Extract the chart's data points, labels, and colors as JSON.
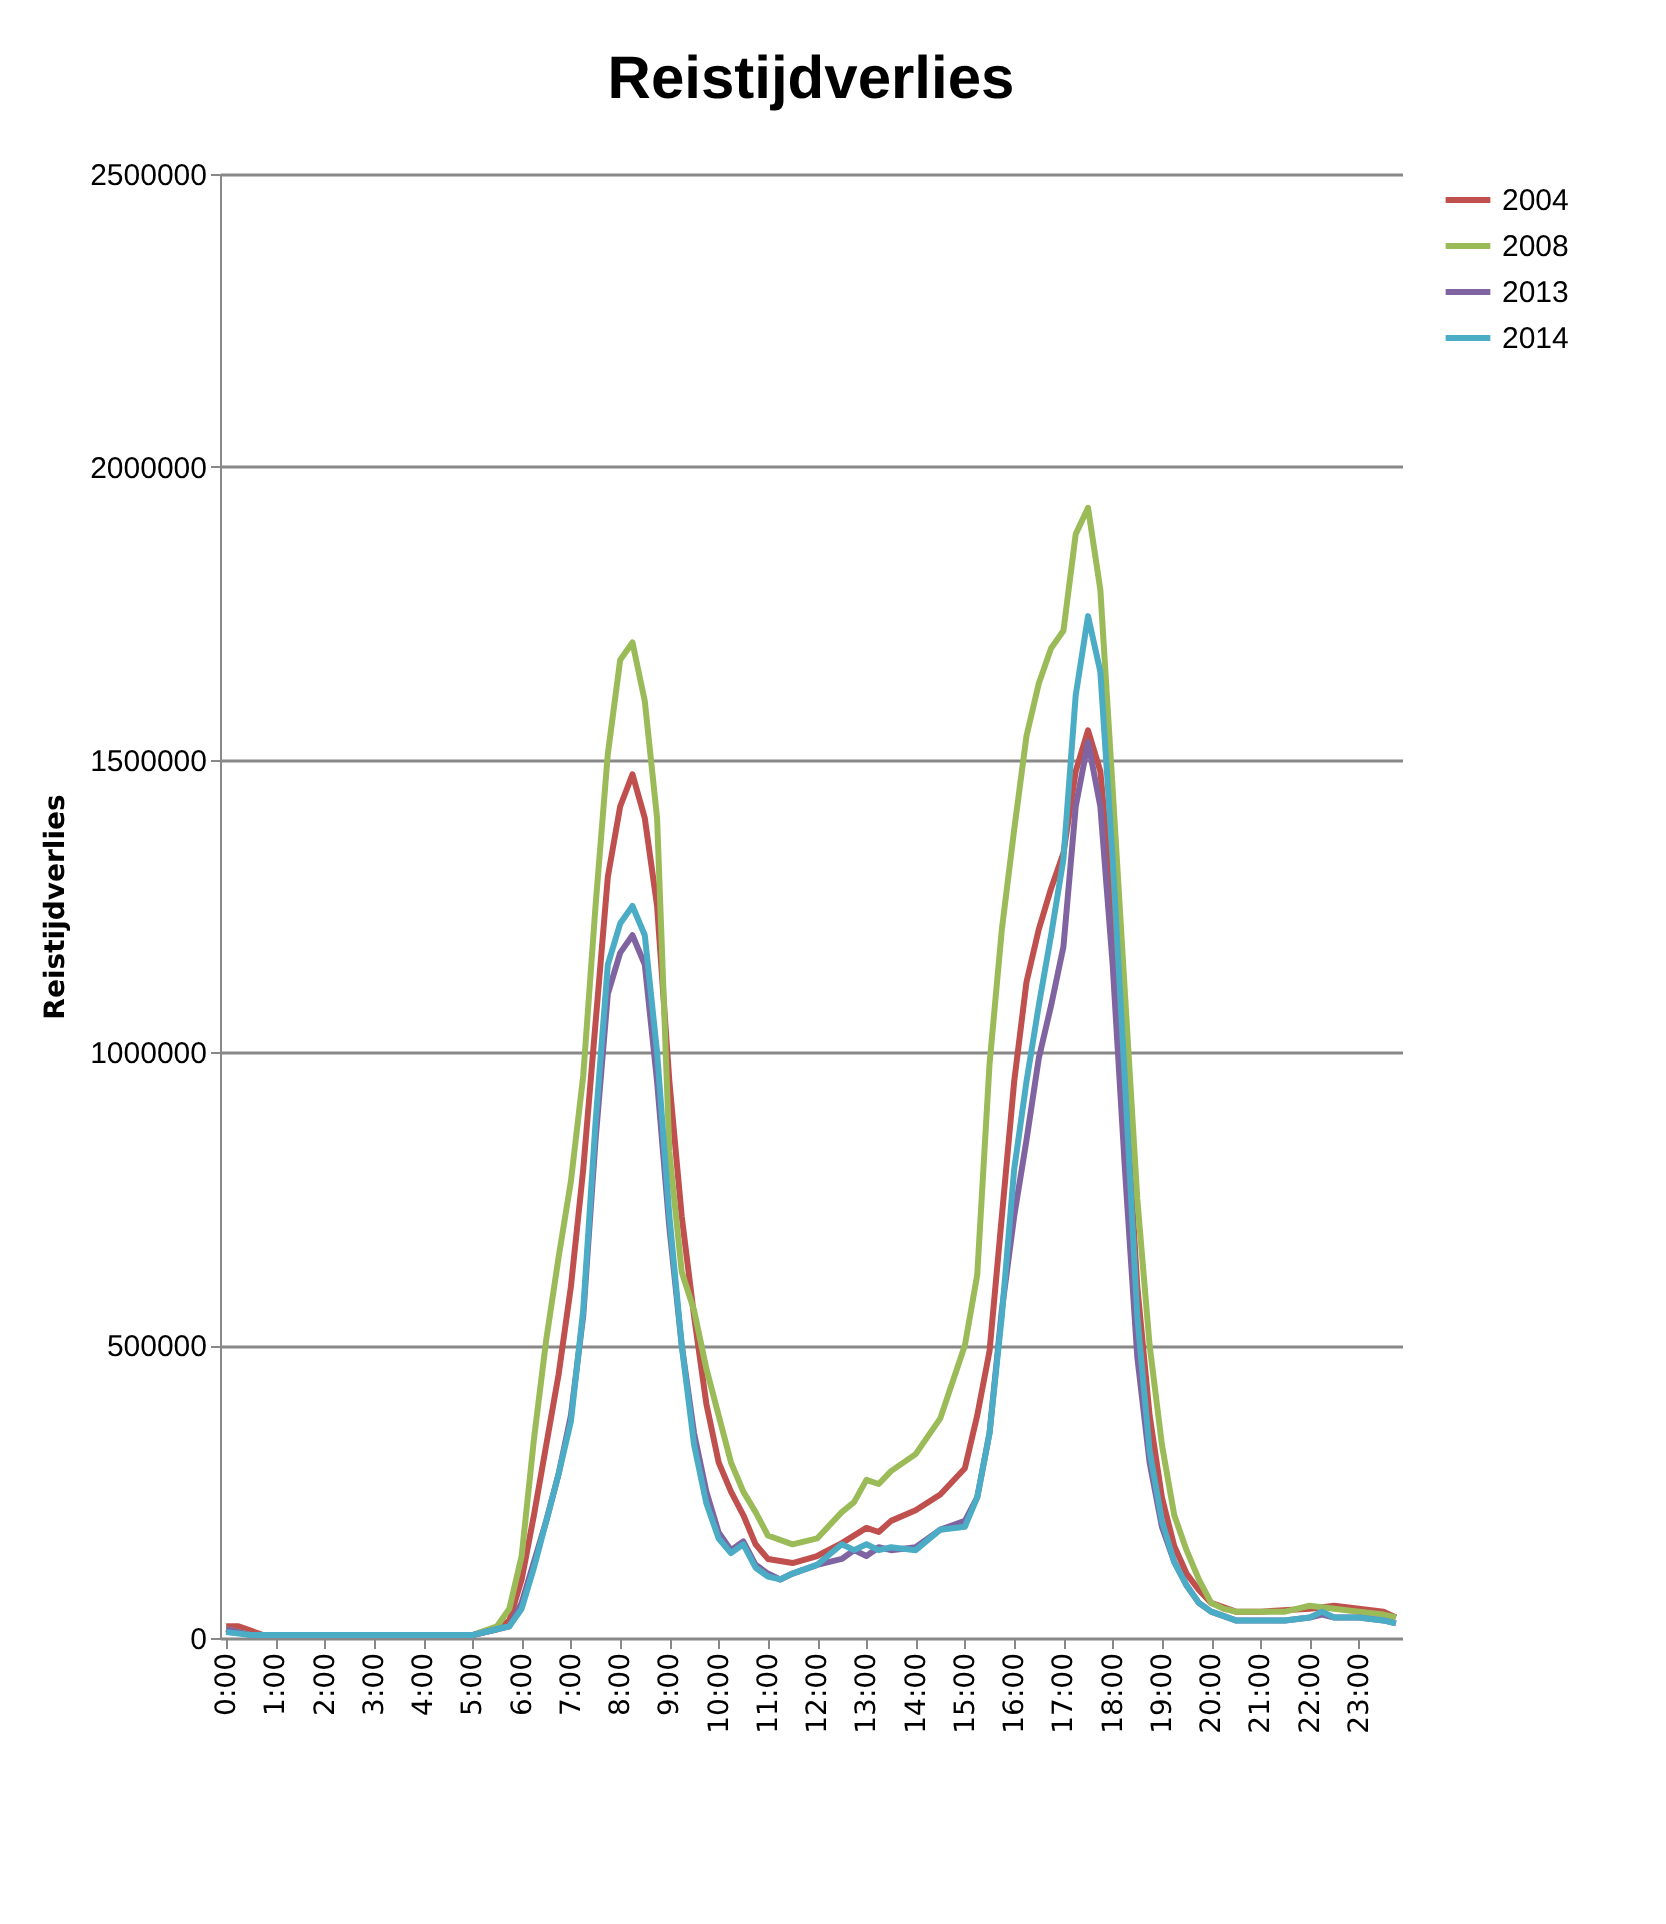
{
  "chart_data": {
    "type": "line",
    "title": "Reistijdverlies",
    "ylabel": "Reistijdverlies",
    "xlim": [
      -0.125,
      23.875
    ],
    "xticks": [
      {
        "value": 0,
        "label": "0:00"
      },
      {
        "value": 1,
        "label": "1:00"
      },
      {
        "value": 2,
        "label": "2:00"
      },
      {
        "value": 3,
        "label": "3:00"
      },
      {
        "value": 4,
        "label": "4:00"
      },
      {
        "value": 5,
        "label": "5:00"
      },
      {
        "value": 6,
        "label": "6:00"
      },
      {
        "value": 7,
        "label": "7:00"
      },
      {
        "value": 8,
        "label": "8:00"
      },
      {
        "value": 9,
        "label": "9:00"
      },
      {
        "value": 10,
        "label": "10:00"
      },
      {
        "value": 11,
        "label": "11:00"
      },
      {
        "value": 12,
        "label": "12:00"
      },
      {
        "value": 13,
        "label": "13:00"
      },
      {
        "value": 14,
        "label": "14:00"
      },
      {
        "value": 15,
        "label": "15:00"
      },
      {
        "value": 16,
        "label": "16:00"
      },
      {
        "value": 17,
        "label": "17:00"
      },
      {
        "value": 18,
        "label": "18:00"
      },
      {
        "value": 19,
        "label": "19:00"
      },
      {
        "value": 20,
        "label": "20:00"
      },
      {
        "value": 21,
        "label": "21:00"
      },
      {
        "value": 22,
        "label": "22:00"
      },
      {
        "value": 23,
        "label": "23:00"
      }
    ],
    "ylim": [
      0,
      2500000
    ],
    "yticks": [
      0,
      500000,
      1000000,
      1500000,
      2000000,
      2500000
    ],
    "grid": "y",
    "legend": "right",
    "marker": "none",
    "line_style": "solid",
    "series": [
      {
        "name": "2004",
        "color": "#c0504d",
        "x": [
          0,
          0.25,
          0.75,
          5.0,
          5.5,
          5.75,
          6.0,
          6.25,
          6.5,
          6.75,
          7.0,
          7.25,
          7.5,
          7.75,
          8.0,
          8.25,
          8.5,
          8.75,
          9.0,
          9.25,
          9.5,
          9.75,
          10.0,
          10.25,
          10.5,
          10.75,
          11.0,
          11.5,
          12.0,
          12.5,
          13.0,
          13.25,
          13.5,
          14.0,
          14.5,
          15.0,
          15.25,
          15.5,
          15.75,
          16.0,
          16.25,
          16.5,
          16.75,
          17.0,
          17.25,
          17.5,
          17.75,
          18.0,
          18.25,
          18.5,
          18.75,
          19.0,
          19.25,
          19.5,
          19.75,
          20.0,
          20.5,
          21.0,
          22.0,
          22.5,
          23.0,
          23.5,
          23.75
        ],
        "values": [
          20000,
          20000,
          5000,
          5000,
          15000,
          30000,
          100000,
          210000,
          330000,
          450000,
          600000,
          800000,
          1050000,
          1300000,
          1420000,
          1475000,
          1400000,
          1250000,
          950000,
          720000,
          550000,
          400000,
          300000,
          250000,
          210000,
          160000,
          135000,
          128000,
          140000,
          162000,
          188000,
          181000,
          200000,
          218000,
          245000,
          290000,
          380000,
          490000,
          720000,
          950000,
          1120000,
          1210000,
          1280000,
          1340000,
          1480000,
          1550000,
          1480000,
          1250000,
          950000,
          600000,
          380000,
          240000,
          157000,
          110000,
          82000,
          60000,
          45000,
          45000,
          50000,
          55000,
          50000,
          45000,
          35000
        ]
      },
      {
        "name": "2008",
        "color": "#9bbb59",
        "x": [
          0,
          0.5,
          5.0,
          5.5,
          5.75,
          6.0,
          6.25,
          6.5,
          6.75,
          7.0,
          7.25,
          7.5,
          7.75,
          8.0,
          8.25,
          8.5,
          8.75,
          9.0,
          9.25,
          9.5,
          9.75,
          10.0,
          10.25,
          10.5,
          10.75,
          11.0,
          11.5,
          12.0,
          12.5,
          12.75,
          13.0,
          13.25,
          13.5,
          14.0,
          14.5,
          15.0,
          15.25,
          15.5,
          15.75,
          16.0,
          16.25,
          16.5,
          16.75,
          17.0,
          17.25,
          17.5,
          17.75,
          18.0,
          18.25,
          18.5,
          18.75,
          19.0,
          19.25,
          19.5,
          19.75,
          20.0,
          20.25,
          20.5,
          21.0,
          21.5,
          22.0,
          22.5,
          23.0,
          23.5,
          23.75
        ],
        "values": [
          15000,
          5000,
          5000,
          20000,
          50000,
          140000,
          340000,
          510000,
          650000,
          780000,
          960000,
          1250000,
          1510000,
          1670000,
          1700000,
          1600000,
          1400000,
          830000,
          625000,
          560000,
          460000,
          380000,
          300000,
          250000,
          215000,
          175000,
          160000,
          170000,
          215000,
          232000,
          270000,
          263000,
          285000,
          314000,
          375000,
          500000,
          620000,
          980000,
          1210000,
          1380000,
          1540000,
          1630000,
          1690000,
          1720000,
          1885000,
          1930000,
          1790000,
          1450000,
          1100000,
          750000,
          500000,
          330000,
          210000,
          150000,
          100000,
          60000,
          50000,
          45000,
          45000,
          45000,
          55000,
          50000,
          45000,
          40000,
          35000
        ]
      },
      {
        "name": "2013",
        "color": "#8064a2",
        "x": [
          0,
          0.5,
          5.0,
          5.5,
          5.75,
          6.0,
          6.25,
          6.5,
          6.75,
          7.0,
          7.25,
          7.5,
          7.75,
          8.0,
          8.25,
          8.5,
          8.75,
          9.0,
          9.25,
          9.5,
          9.75,
          10.0,
          10.25,
          10.5,
          10.75,
          11.0,
          11.25,
          11.5,
          12.0,
          12.5,
          12.75,
          13.0,
          13.25,
          13.5,
          14.0,
          14.5,
          15.0,
          15.25,
          15.5,
          15.75,
          16.0,
          16.25,
          16.5,
          16.75,
          17.0,
          17.25,
          17.5,
          17.75,
          18.0,
          18.25,
          18.5,
          18.75,
          19.0,
          19.25,
          19.5,
          19.75,
          20.0,
          20.5,
          21.0,
          21.5,
          22.0,
          22.25,
          22.5,
          23.0,
          23.5,
          23.75
        ],
        "values": [
          15000,
          5000,
          5000,
          15000,
          20000,
          60000,
          130000,
          200000,
          280000,
          380000,
          550000,
          850000,
          1100000,
          1170000,
          1200000,
          1150000,
          950000,
          700000,
          500000,
          350000,
          250000,
          180000,
          150000,
          165000,
          125000,
          110000,
          100000,
          110000,
          125000,
          135000,
          150000,
          140000,
          155000,
          150000,
          155000,
          185000,
          200000,
          240000,
          350000,
          560000,
          720000,
          850000,
          990000,
          1080000,
          1180000,
          1420000,
          1530000,
          1420000,
          1150000,
          800000,
          480000,
          300000,
          190000,
          130000,
          90000,
          60000,
          45000,
          30000,
          30000,
          30000,
          35000,
          40000,
          35000,
          35000,
          30000,
          25000
        ]
      },
      {
        "name": "2014",
        "color": "#4bacc6",
        "x": [
          0,
          0.5,
          5.0,
          5.5,
          5.75,
          6.0,
          6.25,
          6.5,
          6.75,
          7.0,
          7.25,
          7.5,
          7.75,
          8.0,
          8.25,
          8.5,
          8.75,
          9.0,
          9.25,
          9.5,
          9.75,
          10.0,
          10.25,
          10.5,
          10.75,
          11.0,
          11.25,
          11.5,
          12.0,
          12.5,
          12.75,
          13.0,
          13.25,
          13.5,
          14.0,
          14.5,
          15.0,
          15.25,
          15.5,
          15.75,
          16.0,
          16.25,
          16.5,
          16.75,
          17.0,
          17.25,
          17.5,
          17.75,
          18.0,
          18.25,
          18.5,
          18.75,
          19.0,
          19.25,
          19.5,
          19.75,
          20.0,
          20.5,
          21.0,
          21.5,
          22.0,
          22.25,
          22.5,
          23.0,
          23.5,
          23.75
        ],
        "values": [
          10000,
          5000,
          5000,
          15000,
          20000,
          50000,
          120000,
          200000,
          280000,
          370000,
          560000,
          880000,
          1150000,
          1220000,
          1250000,
          1200000,
          1000000,
          720000,
          500000,
          330000,
          230000,
          170000,
          145000,
          160000,
          120000,
          105000,
          100000,
          110000,
          125000,
          160000,
          150000,
          160000,
          150000,
          155000,
          150000,
          185000,
          190000,
          240000,
          350000,
          550000,
          800000,
          950000,
          1080000,
          1200000,
          1330000,
          1610000,
          1745000,
          1650000,
          1330000,
          950000,
          550000,
          320000,
          200000,
          130000,
          90000,
          60000,
          45000,
          30000,
          30000,
          30000,
          35000,
          45000,
          35000,
          35000,
          30000,
          25000
        ]
      }
    ]
  }
}
